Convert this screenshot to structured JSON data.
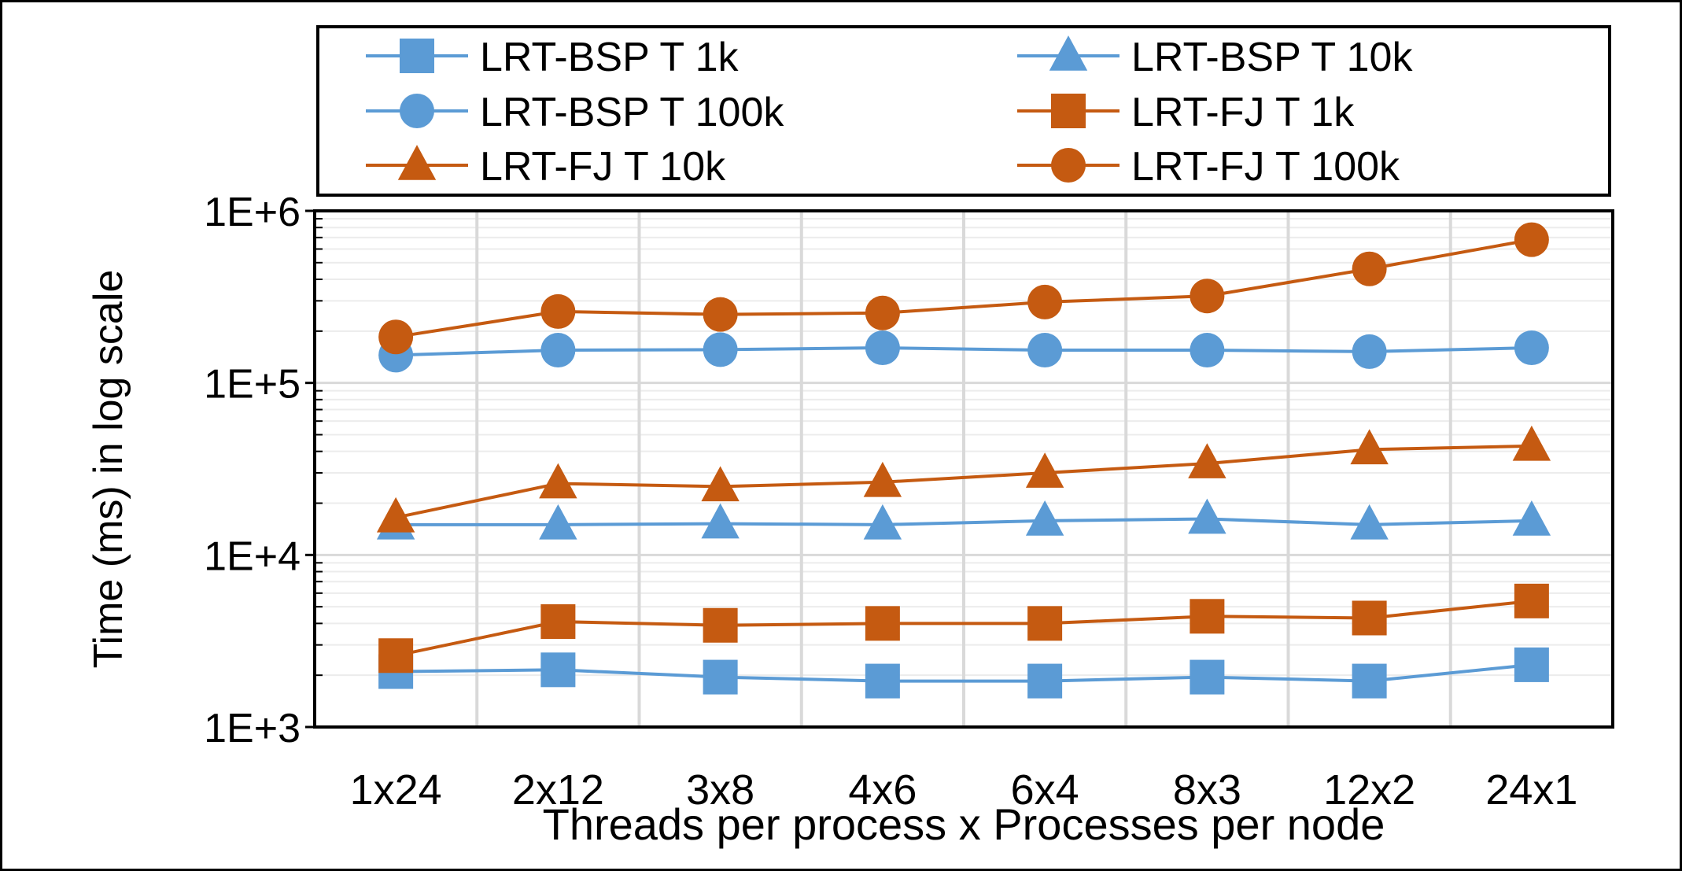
{
  "chart_data": {
    "type": "line",
    "title": "",
    "xlabel": "Threads per process x Processes per node",
    "ylabel": "Time (ms) in log scale",
    "yscale": "log",
    "ylim": [
      1000,
      1000000
    ],
    "ytick_labels": [
      "1E+3",
      "1E+4",
      "1E+5",
      "1E+6"
    ],
    "ytick_values": [
      1000,
      10000,
      100000,
      1000000
    ],
    "categories": [
      "1x24",
      "2x12",
      "3x8",
      "4x6",
      "6x4",
      "8x3",
      "12x2",
      "24x1"
    ],
    "grid": true,
    "legend_position": "top",
    "series": [
      {
        "name": "LRT-BSP T 1k",
        "marker": "square",
        "color": "#5B9BD5",
        "values": [
          2100,
          2150,
          1950,
          1850,
          1850,
          1950,
          1850,
          2300
        ]
      },
      {
        "name": "LRT-BSP T 10k",
        "marker": "triangle",
        "color": "#5B9BD5",
        "values": [
          15000,
          15000,
          15200,
          15000,
          15800,
          16200,
          15000,
          15800
        ]
      },
      {
        "name": "LRT-BSP T 100k",
        "marker": "circle",
        "color": "#5B9BD5",
        "values": [
          145000,
          155000,
          156000,
          160000,
          155000,
          155000,
          152000,
          160000
        ]
      },
      {
        "name": "LRT-FJ T 1k",
        "marker": "square",
        "color": "#C55A11",
        "values": [
          2600,
          4100,
          3900,
          4000,
          4000,
          4400,
          4300,
          5400
        ]
      },
      {
        "name": "LRT-FJ T 10k",
        "marker": "triangle",
        "color": "#C55A11",
        "values": [
          16500,
          26000,
          25000,
          26500,
          30000,
          34000,
          41000,
          43000
        ]
      },
      {
        "name": "LRT-FJ T 100k",
        "marker": "circle",
        "color": "#C55A11",
        "values": [
          185000,
          260000,
          250000,
          255000,
          295000,
          320000,
          460000,
          680000
        ]
      }
    ]
  }
}
